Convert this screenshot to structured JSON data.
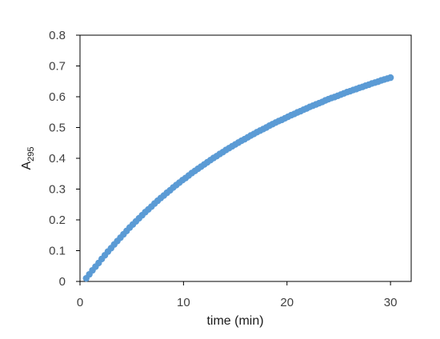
{
  "chart_data": {
    "type": "scatter",
    "title": "",
    "xlabel": "time (min)",
    "ylabel_main": "A",
    "ylabel_sub": "295",
    "xlim": [
      0,
      32
    ],
    "ylim": [
      0,
      0.8
    ],
    "xticks": [
      "0",
      "10",
      "20",
      "30"
    ],
    "yticks": [
      "0",
      "0.1",
      "0.2",
      "0.3",
      "0.4",
      "0.5",
      "0.6",
      "0.7",
      "0.8"
    ],
    "grid": false,
    "legend": "none",
    "marker_color": "#5b9bd5",
    "series": [
      {
        "x": [
          0.6,
          0.9,
          1.2,
          1.5,
          1.8,
          2.1,
          2.4,
          2.7,
          3.0,
          3.3,
          3.6,
          3.9,
          4.2,
          4.5,
          4.8,
          5.1,
          5.4,
          5.7,
          6.0,
          6.3,
          6.6,
          6.9,
          7.2,
          7.5,
          7.8,
          8.1,
          8.4,
          8.7,
          9.0,
          9.3,
          9.6,
          9.9,
          10.2,
          10.5,
          10.8,
          11.1,
          11.4,
          11.7,
          12.0,
          12.3,
          12.6,
          12.9,
          13.2,
          13.5,
          13.8,
          14.1,
          14.4,
          14.7,
          15.0,
          15.3,
          15.6,
          15.9,
          16.2,
          16.5,
          16.8,
          17.1,
          17.4,
          17.7,
          18.0,
          18.3,
          18.6,
          18.9,
          19.2,
          19.5,
          19.8,
          20.1,
          20.4,
          20.7,
          21.0,
          21.3,
          21.6,
          21.9,
          22.2,
          22.5,
          22.8,
          23.1,
          23.4,
          23.7,
          24.0,
          24.3,
          24.6,
          24.9,
          25.2,
          25.5,
          25.8,
          26.1,
          26.4,
          26.7,
          27.0,
          27.3,
          27.6,
          27.9,
          28.2,
          28.5,
          28.8,
          29.1,
          29.4,
          29.7,
          30.0
        ],
        "y": [
          0.01,
          0.023,
          0.036,
          0.048,
          0.06,
          0.073,
          0.085,
          0.097,
          0.108,
          0.12,
          0.131,
          0.142,
          0.153,
          0.164,
          0.175,
          0.185,
          0.195,
          0.205,
          0.215,
          0.225,
          0.234,
          0.243,
          0.253,
          0.262,
          0.271,
          0.279,
          0.288,
          0.296,
          0.305,
          0.313,
          0.321,
          0.329,
          0.336,
          0.344,
          0.352,
          0.359,
          0.366,
          0.373,
          0.38,
          0.387,
          0.394,
          0.401,
          0.407,
          0.414,
          0.42,
          0.427,
          0.433,
          0.439,
          0.445,
          0.451,
          0.457,
          0.462,
          0.468,
          0.474,
          0.479,
          0.485,
          0.49,
          0.495,
          0.5,
          0.506,
          0.511,
          0.516,
          0.521,
          0.525,
          0.53,
          0.535,
          0.54,
          0.544,
          0.549,
          0.553,
          0.558,
          0.562,
          0.567,
          0.571,
          0.575,
          0.579,
          0.583,
          0.588,
          0.592,
          0.596,
          0.599,
          0.603,
          0.607,
          0.611,
          0.615,
          0.618,
          0.622,
          0.625,
          0.629,
          0.632,
          0.636,
          0.639,
          0.643,
          0.646,
          0.649,
          0.653,
          0.656,
          0.659,
          0.662
        ]
      }
    ]
  }
}
